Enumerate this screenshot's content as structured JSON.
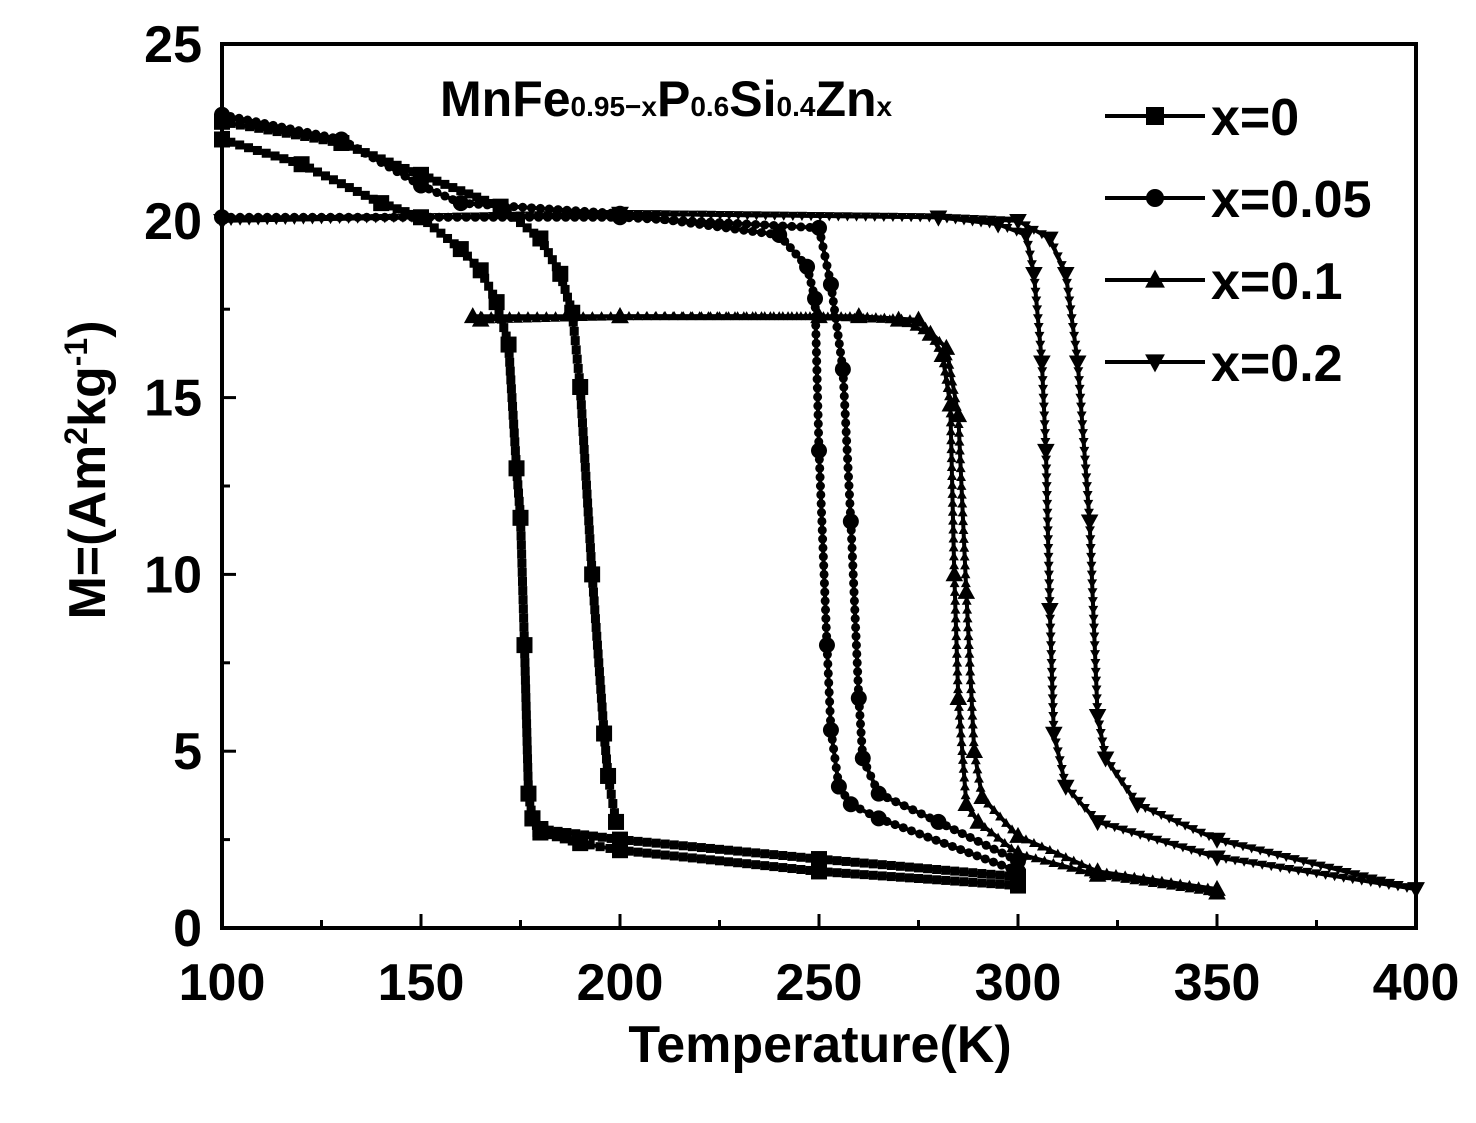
{
  "chart_data": {
    "type": "line",
    "title": "",
    "annotation": {
      "parts": [
        {
          "text": "MnFe",
          "sub": false
        },
        {
          "text": "0.95−x",
          "sub": true
        },
        {
          "text": "P",
          "sub": false
        },
        {
          "text": "0.6",
          "sub": true
        },
        {
          "text": "Si",
          "sub": false
        },
        {
          "text": "0.4",
          "sub": true
        },
        {
          "text": "Zn",
          "sub": false
        },
        {
          "text": "x",
          "sub": true
        }
      ]
    },
    "xlabel": "Temperature(K)",
    "ylabel": {
      "parts": [
        {
          "text": "M=(Am",
          "sup": false
        },
        {
          "text": "2",
          "sup": true
        },
        {
          "text": "kg",
          "sup": false
        },
        {
          "text": "-1",
          "sup": true
        },
        {
          "text": ")",
          "sup": false
        }
      ]
    },
    "xlim": [
      100,
      400
    ],
    "ylim": [
      0,
      25
    ],
    "x_ticks": [
      100,
      150,
      200,
      250,
      300,
      350,
      400
    ],
    "y_ticks": [
      0,
      5,
      10,
      15,
      20,
      25
    ],
    "x_tick_labels": [
      "100",
      "150",
      "200",
      "250",
      "300",
      "350",
      "400"
    ],
    "y_tick_labels": [
      "0",
      "5",
      "10",
      "15",
      "20",
      "25"
    ],
    "grid": false,
    "legend_position": "top-right",
    "series": [
      {
        "name": "x=0",
        "marker": "square",
        "cooling": [
          [
            100,
            22.3
          ],
          [
            120,
            21.6
          ],
          [
            140,
            20.5
          ],
          [
            150,
            20.1
          ],
          [
            160,
            19.2
          ],
          [
            165,
            18.6
          ],
          [
            169,
            17.7
          ],
          [
            172,
            16.5
          ],
          [
            174,
            13
          ],
          [
            175,
            11.6
          ],
          [
            176,
            8
          ],
          [
            177,
            3.8
          ],
          [
            178,
            3.1
          ],
          [
            180,
            2.8
          ],
          [
            200,
            2.5
          ],
          [
            250,
            1.95
          ],
          [
            300,
            1.45
          ]
        ],
        "heating": [
          [
            300,
            1.2
          ],
          [
            250,
            1.6
          ],
          [
            200,
            2.2
          ],
          [
            190,
            2.4
          ],
          [
            180,
            2.7
          ],
          [
            178,
            3.1
          ]
        ],
        "heating2": [
          [
            100,
            22.8
          ],
          [
            130,
            22.2
          ],
          [
            150,
            21.3
          ],
          [
            170,
            20.4
          ],
          [
            180,
            19.5
          ],
          [
            185,
            18.5
          ],
          [
            188,
            17.4
          ],
          [
            190,
            15.3
          ],
          [
            193,
            10
          ],
          [
            196,
            5.5
          ],
          [
            197,
            4.3
          ],
          [
            199,
            3
          ]
        ]
      },
      {
        "name": "x=0.05",
        "marker": "circle",
        "cooling": [
          [
            100,
            23
          ],
          [
            130,
            22.3
          ],
          [
            150,
            21
          ],
          [
            160,
            20.5
          ],
          [
            200,
            20.2
          ],
          [
            240,
            19.6
          ],
          [
            247,
            18.7
          ],
          [
            249,
            17.8
          ],
          [
            250,
            13.5
          ],
          [
            252,
            8
          ],
          [
            253,
            5.6
          ],
          [
            255,
            4
          ],
          [
            258,
            3.5
          ],
          [
            265,
            3.1
          ],
          [
            300,
            1.6
          ]
        ],
        "heating": [
          [
            100,
            20.1
          ],
          [
            200,
            20.1
          ],
          [
            250,
            19.8
          ],
          [
            253,
            18.2
          ],
          [
            256,
            15.8
          ],
          [
            258,
            11.5
          ],
          [
            260,
            6.5
          ],
          [
            261,
            4.8
          ],
          [
            265,
            3.8
          ],
          [
            280,
            3
          ],
          [
            300,
            1.9
          ]
        ]
      },
      {
        "name": "x=0.1",
        "marker": "triangle-up",
        "cooling": [
          [
            163,
            17.3
          ],
          [
            200,
            17.3
          ],
          [
            250,
            17.3
          ],
          [
            270,
            17.2
          ],
          [
            278,
            16.8
          ],
          [
            281,
            16.2
          ],
          [
            283,
            14.8
          ],
          [
            284,
            10
          ],
          [
            285,
            6.5
          ],
          [
            287,
            3.5
          ],
          [
            290,
            3
          ],
          [
            300,
            2.1
          ],
          [
            320,
            1.5
          ],
          [
            350,
            1
          ]
        ],
        "heating": [
          [
            165,
            17.2
          ],
          [
            200,
            17.3
          ],
          [
            260,
            17.3
          ],
          [
            275,
            17.2
          ],
          [
            282,
            16.4
          ],
          [
            285,
            14.5
          ],
          [
            287,
            9.5
          ],
          [
            289,
            5
          ],
          [
            291,
            3.7
          ],
          [
            300,
            2.6
          ],
          [
            320,
            1.6
          ],
          [
            350,
            1.1
          ]
        ]
      },
      {
        "name": "x=0.2",
        "marker": "triangle-down",
        "cooling": [
          [
            100,
            20
          ],
          [
            200,
            20.2
          ],
          [
            280,
            20.1
          ],
          [
            295,
            19.9
          ],
          [
            302,
            19.6
          ],
          [
            304,
            18.5
          ],
          [
            306,
            16
          ],
          [
            307,
            13.5
          ],
          [
            308,
            9
          ],
          [
            309,
            5.5
          ],
          [
            312,
            4
          ],
          [
            320,
            3
          ],
          [
            350,
            2
          ],
          [
            400,
            1.1
          ]
        ],
        "heating": [
          [
            100,
            20
          ],
          [
            200,
            20.2
          ],
          [
            280,
            20.1
          ],
          [
            300,
            20
          ],
          [
            308,
            19.5
          ],
          [
            312,
            18.5
          ],
          [
            315,
            16
          ],
          [
            318,
            11.5
          ],
          [
            320,
            6
          ],
          [
            322,
            4.8
          ],
          [
            330,
            3.5
          ],
          [
            350,
            2.5
          ],
          [
            400,
            1.1
          ]
        ]
      }
    ]
  }
}
